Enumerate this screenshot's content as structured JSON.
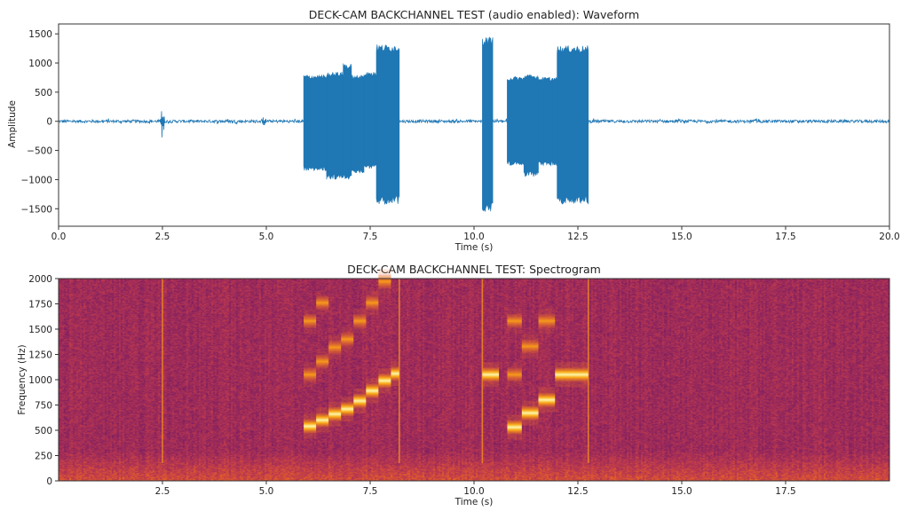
{
  "chart_data": [
    {
      "type": "line",
      "title": "DECK-CAM BACKCHANNEL TEST (audio enabled): Waveform",
      "xlabel": "Time (s)",
      "ylabel": "Amplitude",
      "xlim": [
        0,
        20
      ],
      "ylim": [
        -1800,
        1670
      ],
      "xticks": [
        "0.0",
        "2.5",
        "5.0",
        "7.5",
        "10.0",
        "12.5",
        "15.0",
        "17.5",
        "20.0"
      ],
      "yticks": [
        "−1500",
        "−1000",
        "−500",
        "0",
        "500",
        "1000",
        "1500"
      ],
      "color": "#1f77b4",
      "grid": false,
      "noise_amplitude": 25,
      "transients": [
        {
          "t": 2.5,
          "max": 330,
          "min": -450
        },
        {
          "t": 4.95,
          "max": 130,
          "min": -120
        }
      ],
      "segments": [
        {
          "start": 5.9,
          "end": 6.45,
          "max": 800,
          "min": -850
        },
        {
          "start": 6.45,
          "end": 6.85,
          "max": 850,
          "min": -1000
        },
        {
          "start": 6.85,
          "end": 7.05,
          "max": 1000,
          "min": -1000
        },
        {
          "start": 7.05,
          "end": 7.35,
          "max": 800,
          "min": -900
        },
        {
          "start": 7.35,
          "end": 7.65,
          "max": 850,
          "min": -820
        },
        {
          "start": 7.65,
          "end": 8.2,
          "max": 1320,
          "min": -1420
        },
        {
          "start": 10.2,
          "end": 10.45,
          "max": 1450,
          "min": -1550
        },
        {
          "start": 10.8,
          "end": 11.2,
          "max": 770,
          "min": -760
        },
        {
          "start": 11.2,
          "end": 11.55,
          "max": 800,
          "min": -950
        },
        {
          "start": 11.55,
          "end": 12.0,
          "max": 760,
          "min": -760
        },
        {
          "start": 12.0,
          "end": 12.75,
          "max": 1300,
          "min": -1420
        }
      ]
    },
    {
      "type": "heatmap",
      "title": "DECK-CAM BACKCHANNEL TEST: Spectrogram",
      "xlabel": "Time (s)",
      "ylabel": "Frequency (Hz)",
      "xlim": [
        0,
        20
      ],
      "ylim": [
        0,
        2000
      ],
      "xticks": [
        "2.5",
        "5.0",
        "7.5",
        "10.0",
        "12.5",
        "15.0",
        "17.5"
      ],
      "yticks": [
        "0",
        "250",
        "500",
        "750",
        "1000",
        "1250",
        "1500",
        "1750",
        "2000"
      ],
      "colormap": "inferno",
      "transients_s": [
        2.5,
        8.2,
        10.2,
        12.75
      ],
      "tones": [
        {
          "start": 5.9,
          "end": 6.2,
          "freq": 540,
          "level": 1.0
        },
        {
          "start": 5.9,
          "end": 6.2,
          "freq": 1050,
          "level": 0.6
        },
        {
          "start": 5.9,
          "end": 6.2,
          "freq": 1580,
          "level": 0.45
        },
        {
          "start": 6.2,
          "end": 6.5,
          "freq": 600,
          "level": 1.0
        },
        {
          "start": 6.2,
          "end": 6.5,
          "freq": 1180,
          "level": 0.5
        },
        {
          "start": 6.2,
          "end": 6.5,
          "freq": 1760,
          "level": 0.4
        },
        {
          "start": 6.5,
          "end": 6.8,
          "freq": 660,
          "level": 1.0
        },
        {
          "start": 6.5,
          "end": 6.8,
          "freq": 1320,
          "level": 0.65
        },
        {
          "start": 6.8,
          "end": 7.1,
          "freq": 710,
          "level": 1.0
        },
        {
          "start": 6.8,
          "end": 7.1,
          "freq": 1400,
          "level": 0.6
        },
        {
          "start": 7.1,
          "end": 7.4,
          "freq": 790,
          "level": 1.0
        },
        {
          "start": 7.1,
          "end": 7.4,
          "freq": 1580,
          "level": 0.65
        },
        {
          "start": 7.4,
          "end": 7.7,
          "freq": 890,
          "level": 1.0
        },
        {
          "start": 7.4,
          "end": 7.7,
          "freq": 1760,
          "level": 0.65
        },
        {
          "start": 7.7,
          "end": 8.0,
          "freq": 990,
          "level": 1.0
        },
        {
          "start": 7.7,
          "end": 8.0,
          "freq": 1970,
          "level": 0.65
        },
        {
          "start": 8.0,
          "end": 8.2,
          "freq": 1060,
          "level": 1.0
        },
        {
          "start": 10.2,
          "end": 10.6,
          "freq": 1050,
          "level": 1.0
        },
        {
          "start": 10.8,
          "end": 11.15,
          "freq": 530,
          "level": 1.0
        },
        {
          "start": 10.8,
          "end": 11.15,
          "freq": 1050,
          "level": 0.5
        },
        {
          "start": 10.8,
          "end": 11.15,
          "freq": 1580,
          "level": 0.45
        },
        {
          "start": 11.15,
          "end": 11.55,
          "freq": 670,
          "level": 1.0
        },
        {
          "start": 11.15,
          "end": 11.55,
          "freq": 1330,
          "level": 0.65
        },
        {
          "start": 11.55,
          "end": 11.95,
          "freq": 800,
          "level": 1.0
        },
        {
          "start": 11.55,
          "end": 11.95,
          "freq": 1580,
          "level": 0.65
        },
        {
          "start": 11.95,
          "end": 12.75,
          "freq": 1050,
          "level": 1.0
        }
      ]
    }
  ]
}
